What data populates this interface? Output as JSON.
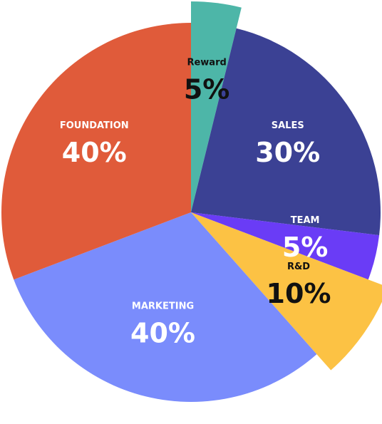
{
  "chart_data": {
    "type": "pie",
    "categories": [
      "Reward",
      "SALES",
      "TEAM",
      "R&D",
      "MARKETING",
      "FOUNDATION"
    ],
    "values": [
      5,
      30,
      5,
      10,
      40,
      40
    ],
    "value_labels": [
      "5%",
      "30%",
      "5%",
      "10%",
      "40%",
      "40%"
    ],
    "colors": [
      "#4db6a8",
      "#3b4194",
      "#6a3cf6",
      "#fcc244",
      "#7a8cfc",
      "#e05b3a"
    ],
    "label_colors": [
      "#111111",
      "#ffffff",
      "#ffffff",
      "#111111",
      "#ffffff",
      "#ffffff"
    ],
    "exploded": [
      true,
      false,
      false,
      true,
      false,
      false
    ]
  }
}
